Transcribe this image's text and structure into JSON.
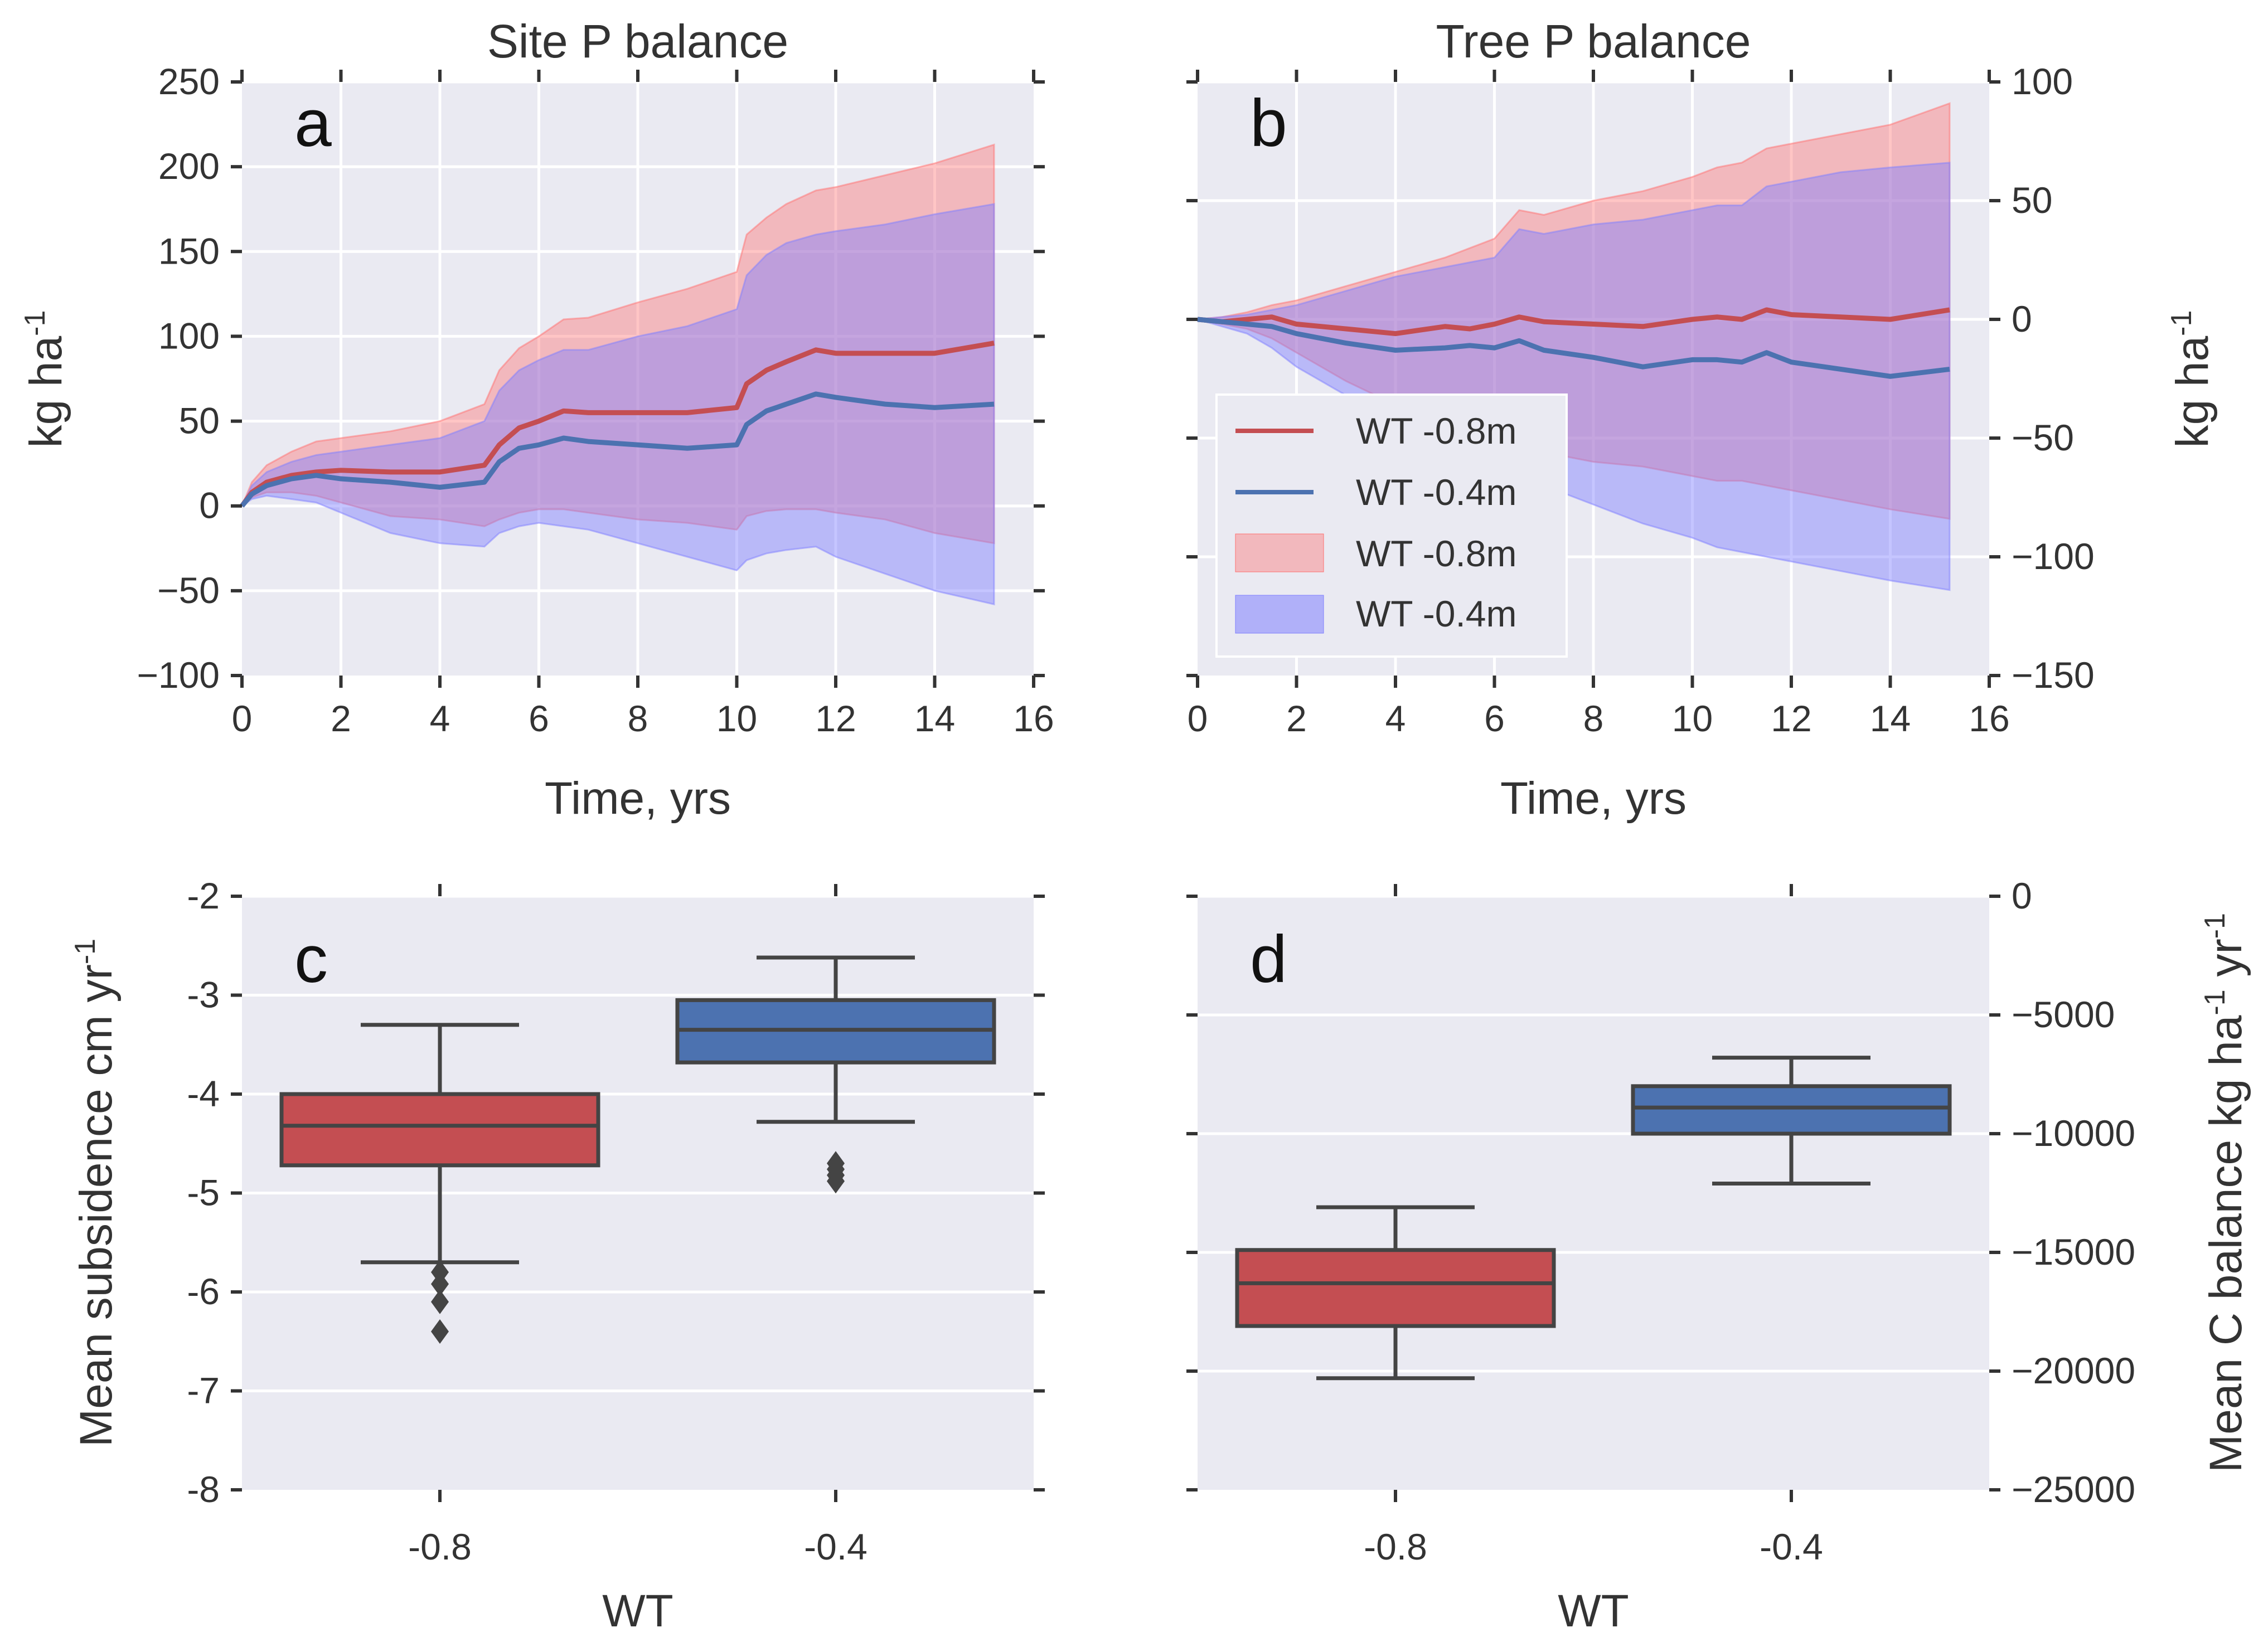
{
  "figure": {
    "colors": {
      "panel_bg": "#eaeaf2",
      "grid": "#ffffff",
      "red": "#c44e52",
      "blue": "#4c72b0",
      "red_fill": "#ff6f6f",
      "blue_fill": "#7f7fff",
      "box_edge": "#444444"
    }
  },
  "chart_data": [
    {
      "id": "a",
      "type": "line",
      "panel_letter": "a",
      "title": "Site P balance",
      "xlabel": "Time, yrs",
      "ylabel": "kg ha-1",
      "ylabel_main": "kg ha",
      "ylabel_sup": "-1",
      "xlim": [
        0,
        16
      ],
      "ylim": [
        -100,
        250
      ],
      "xticks": [
        0,
        2,
        4,
        6,
        8,
        10,
        12,
        14,
        16
      ],
      "xtick_labels": [
        "0",
        "2",
        "4",
        "6",
        "8",
        "10",
        "12",
        "14",
        "16"
      ],
      "yticks": [
        -100,
        -50,
        0,
        50,
        100,
        150,
        200,
        250
      ],
      "ytick_labels": [
        "−100",
        "−50",
        "0",
        "50",
        "100",
        "150",
        "200",
        "250"
      ],
      "x": [
        0,
        0.2,
        0.5,
        1,
        1.5,
        2,
        3,
        4,
        4.9,
        5.2,
        5.6,
        6,
        6.5,
        7,
        8,
        9,
        10,
        10.2,
        10.6,
        11,
        11.6,
        12,
        13,
        14,
        15.2
      ],
      "series": [
        {
          "name": "WT -0.8m",
          "color": "red",
          "mean": [
            0,
            8,
            14,
            18,
            20,
            21,
            20,
            20,
            24,
            36,
            46,
            50,
            56,
            55,
            55,
            55,
            58,
            72,
            80,
            85,
            92,
            90,
            90,
            90,
            96
          ],
          "upper": [
            0,
            14,
            24,
            32,
            38,
            40,
            44,
            50,
            60,
            80,
            93,
            100,
            110,
            111,
            120,
            128,
            138,
            160,
            170,
            178,
            186,
            188,
            195,
            202,
            213
          ],
          "lower": [
            0,
            5,
            8,
            8,
            6,
            2,
            -6,
            -8,
            -12,
            -8,
            -4,
            -2,
            -2,
            -4,
            -8,
            -10,
            -14,
            -6,
            -3,
            -2,
            -2,
            -4,
            -8,
            -16,
            -22
          ]
        },
        {
          "name": "WT -0.4m",
          "color": "blue",
          "mean": [
            0,
            7,
            12,
            16,
            18,
            16,
            14,
            11,
            14,
            26,
            34,
            36,
            40,
            38,
            36,
            34,
            36,
            48,
            56,
            60,
            66,
            64,
            60,
            58,
            60
          ],
          "upper": [
            0,
            12,
            20,
            26,
            30,
            32,
            36,
            40,
            50,
            68,
            80,
            86,
            92,
            92,
            100,
            106,
            116,
            136,
            148,
            155,
            160,
            162,
            166,
            172,
            178
          ],
          "lower": [
            0,
            4,
            6,
            4,
            2,
            -4,
            -16,
            -22,
            -24,
            -16,
            -12,
            -10,
            -12,
            -14,
            -22,
            -30,
            -38,
            -32,
            -28,
            -26,
            -24,
            -30,
            -40,
            -50,
            -58
          ]
        }
      ]
    },
    {
      "id": "b",
      "type": "line",
      "panel_letter": "b",
      "title": "Tree P balance",
      "xlabel": "Time, yrs",
      "ylabel": "kg ha-1",
      "ylabel_main": "kg ha",
      "ylabel_sup": "-1",
      "xlim": [
        0,
        16
      ],
      "ylim": [
        -150,
        100
      ],
      "xticks": [
        0,
        2,
        4,
        6,
        8,
        10,
        12,
        14,
        16
      ],
      "xtick_labels": [
        "0",
        "2",
        "4",
        "6",
        "8",
        "10",
        "12",
        "14",
        "16"
      ],
      "yticks": [
        -150,
        -100,
        -50,
        0,
        50,
        100
      ],
      "ytick_labels": [
        "−150",
        "−100",
        "−50",
        "0",
        "50",
        "100"
      ],
      "x": [
        0,
        0.5,
        1,
        1.5,
        2,
        3,
        4,
        5,
        5.5,
        6,
        6.5,
        7,
        8,
        9,
        10,
        10.5,
        11,
        11.5,
        12,
        13,
        14,
        15.2
      ],
      "series": [
        {
          "name": "WT -0.8m",
          "color": "red",
          "mean": [
            0,
            -1,
            0,
            1,
            -2,
            -4,
            -6,
            -3,
            -4,
            -2,
            1,
            -1,
            -2,
            -3,
            0,
            1,
            0,
            4,
            2,
            1,
            0,
            4
          ],
          "upper": [
            0,
            1,
            3,
            6,
            8,
            14,
            20,
            26,
            30,
            34,
            46,
            44,
            50,
            54,
            60,
            64,
            66,
            72,
            74,
            78,
            82,
            91
          ],
          "lower": [
            0,
            -2,
            -4,
            -8,
            -14,
            -26,
            -36,
            -42,
            -48,
            -52,
            -54,
            -56,
            -60,
            -62,
            -66,
            -68,
            -68,
            -70,
            -72,
            -76,
            -80,
            -84
          ]
        },
        {
          "name": "WT -0.4m",
          "color": "blue",
          "mean": [
            0,
            -1,
            -2,
            -3,
            -6,
            -10,
            -13,
            -12,
            -11,
            -12,
            -9,
            -13,
            -16,
            -20,
            -17,
            -17,
            -18,
            -14,
            -18,
            -21,
            -24,
            -21
          ],
          "upper": [
            0,
            1,
            2,
            4,
            6,
            12,
            18,
            22,
            24,
            26,
            38,
            36,
            40,
            42,
            46,
            48,
            48,
            56,
            58,
            62,
            64,
            66
          ],
          "lower": [
            0,
            -3,
            -6,
            -12,
            -20,
            -32,
            -44,
            -52,
            -58,
            -62,
            -66,
            -70,
            -78,
            -86,
            -92,
            -96,
            -98,
            -100,
            -102,
            -106,
            -110,
            -114
          ]
        }
      ],
      "legend": {
        "position": "center-left",
        "entries": [
          {
            "label": "WT -0.8m",
            "kind": "line",
            "color": "red"
          },
          {
            "label": "WT -0.4m",
            "kind": "line",
            "color": "blue"
          },
          {
            "label": "WT -0.8m",
            "kind": "patch",
            "color": "red"
          },
          {
            "label": "WT -0.4m",
            "kind": "patch",
            "color": "blue"
          }
        ]
      }
    },
    {
      "id": "c",
      "type": "box",
      "panel_letter": "c",
      "title": "",
      "xlabel": "WT",
      "ylabel": "Mean subsidence cm yr-1",
      "ylabel_main": "Mean subsidence cm yr",
      "ylabel_sup": "-1",
      "categories": [
        "-0.8",
        "-0.4"
      ],
      "ylim": [
        -8,
        -2
      ],
      "yticks": [
        -8,
        -7,
        -6,
        -5,
        -4,
        -3,
        -2
      ],
      "ytick_labels": [
        "-8",
        "-7",
        "-6",
        "-5",
        "-4",
        "-3",
        "-2"
      ],
      "boxes": [
        {
          "category": "-0.8",
          "color": "red",
          "whisker_low": -5.7,
          "q1": -4.72,
          "median": -4.32,
          "q3": -4.0,
          "whisker_high": -3.3,
          "outliers": [
            -5.8,
            -5.92,
            -6.1,
            -6.4
          ]
        },
        {
          "category": "-0.4",
          "color": "blue",
          "whisker_low": -4.28,
          "q1": -3.68,
          "median": -3.35,
          "q3": -3.05,
          "whisker_high": -2.62,
          "outliers": [
            -4.7,
            -4.76,
            -4.82,
            -4.88
          ]
        }
      ]
    },
    {
      "id": "d",
      "type": "box",
      "panel_letter": "d",
      "title": "",
      "xlabel": "WT",
      "ylabel": "Mean C balance kg ha-1 yr-1",
      "ylabel_main": "Mean C balance kg ha",
      "ylabel_sup1": "-1",
      "ylabel_mid": " yr",
      "ylabel_sup2": "-1",
      "categories": [
        "-0.8",
        "-0.4"
      ],
      "ylim": [
        -25000,
        0
      ],
      "yticks": [
        -25000,
        -20000,
        -15000,
        -10000,
        -5000,
        0
      ],
      "ytick_labels": [
        "−25000",
        "−20000",
        "−15000",
        "−10000",
        "−5000",
        "0"
      ],
      "boxes": [
        {
          "category": "-0.8",
          "color": "red",
          "whisker_low": -20300,
          "q1": -18100,
          "median": -16300,
          "q3": -14900,
          "whisker_high": -13100,
          "outliers": []
        },
        {
          "category": "-0.4",
          "color": "blue",
          "whisker_low": -12100,
          "q1": -10000,
          "median": -8900,
          "q3": -8000,
          "whisker_high": -6800,
          "outliers": []
        }
      ]
    }
  ]
}
